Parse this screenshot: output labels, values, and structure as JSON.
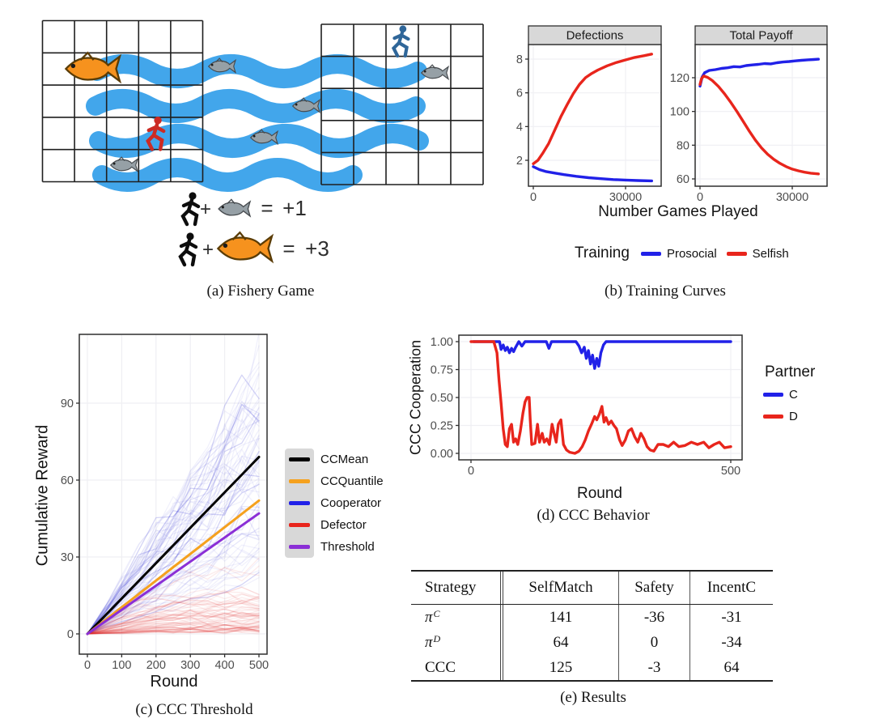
{
  "figure": {
    "captions": {
      "a": "(a) Fishery Game",
      "b": "(b) Training Curves",
      "c": "(c) CCC Threshold",
      "d": "(d) CCC Behavior",
      "e": "(e) Results"
    }
  },
  "fishery": {
    "plus": "+",
    "equals": "=",
    "reward_small": "+1",
    "reward_big": "+3",
    "colors": {
      "water": "#38A2EA",
      "gray_fish": "#96A0A6",
      "orange_fish": "#F6921E",
      "red_agent": "#CC2B24",
      "blue_agent": "#2F6699",
      "black_agent": "#0d0d0d"
    }
  },
  "chart_data": [
    {
      "id": "defections",
      "type": "line",
      "title": "Defections",
      "xlabel": "Number Games Played",
      "xlim": [
        0,
        41000
      ],
      "ylim": [
        0.5,
        8.8
      ],
      "xticks": [
        {
          "v": 0,
          "label": "0"
        },
        {
          "v": 30000,
          "label": "30000"
        }
      ],
      "yticks": [
        {
          "v": 2,
          "label": "2"
        },
        {
          "v": 4,
          "label": "4"
        },
        {
          "v": 6,
          "label": "6"
        },
        {
          "v": 8,
          "label": "8"
        }
      ],
      "series": [
        {
          "name": "Selfish",
          "color": "#E8251C",
          "points": [
            [
              0,
              1.8
            ],
            [
              1500,
              2.0
            ],
            [
              3000,
              2.4
            ],
            [
              5000,
              3.0
            ],
            [
              7000,
              3.8
            ],
            [
              9000,
              4.6
            ],
            [
              11000,
              5.3
            ],
            [
              13000,
              5.95
            ],
            [
              15000,
              6.5
            ],
            [
              17000,
              6.9
            ],
            [
              19000,
              7.15
            ],
            [
              21000,
              7.35
            ],
            [
              24000,
              7.6
            ],
            [
              27000,
              7.8
            ],
            [
              30000,
              7.95
            ],
            [
              33000,
              8.1
            ],
            [
              36000,
              8.2
            ],
            [
              38500,
              8.3
            ]
          ]
        },
        {
          "name": "Prosocial",
          "color": "#2121E8",
          "points": [
            [
              0,
              1.62
            ],
            [
              2000,
              1.45
            ],
            [
              4000,
              1.34
            ],
            [
              7000,
              1.24
            ],
            [
              10000,
              1.15
            ],
            [
              14000,
              1.05
            ],
            [
              18000,
              0.97
            ],
            [
              22000,
              0.91
            ],
            [
              26000,
              0.86
            ],
            [
              30000,
              0.83
            ],
            [
              34000,
              0.8
            ],
            [
              38500,
              0.78
            ]
          ]
        }
      ]
    },
    {
      "id": "total-payoff",
      "type": "line",
      "title": "Total Payoff",
      "xlabel": "Number Games Played",
      "xlim": [
        0,
        41000
      ],
      "ylim": [
        56,
        140
      ],
      "xticks": [
        {
          "v": 0,
          "label": "0"
        },
        {
          "v": 30000,
          "label": "30000"
        }
      ],
      "yticks": [
        {
          "v": 60,
          "label": "60"
        },
        {
          "v": 80,
          "label": "80"
        },
        {
          "v": 100,
          "label": "100"
        },
        {
          "v": 120,
          "label": "120"
        }
      ],
      "series": [
        {
          "name": "Prosocial",
          "color": "#2121E8",
          "points": [
            [
              0,
              115
            ],
            [
              700,
              120.5
            ],
            [
              1500,
              123
            ],
            [
              3000,
              124.3
            ],
            [
              5000,
              124.8
            ],
            [
              7000,
              125.5
            ],
            [
              9000,
              125.9
            ],
            [
              11000,
              126.6
            ],
            [
              13000,
              126.4
            ],
            [
              15000,
              127.2
            ],
            [
              17000,
              127.6
            ],
            [
              19000,
              127.9
            ],
            [
              21000,
              128.4
            ],
            [
              23000,
              128.2
            ],
            [
              25000,
              128.9
            ],
            [
              27000,
              129.3
            ],
            [
              29000,
              129.6
            ],
            [
              31000,
              130.0
            ],
            [
              33000,
              130.3
            ],
            [
              35000,
              130.6
            ],
            [
              37000,
              130.8
            ],
            [
              38500,
              131
            ]
          ]
        },
        {
          "name": "Selfish",
          "color": "#E8251C",
          "points": [
            [
              0,
              116
            ],
            [
              500,
              119.5
            ],
            [
              1200,
              121
            ],
            [
              2500,
              120.2
            ],
            [
              4000,
              118.3
            ],
            [
              6000,
              114.8
            ],
            [
              8000,
              110.4
            ],
            [
              10000,
              105.4
            ],
            [
              12000,
              100
            ],
            [
              14000,
              94.2
            ],
            [
              16000,
              88.4
            ],
            [
              18000,
              83
            ],
            [
              20000,
              78.4
            ],
            [
              22000,
              74.6
            ],
            [
              24000,
              71.6
            ],
            [
              26000,
              69.2
            ],
            [
              28000,
              67.3
            ],
            [
              30000,
              65.8
            ],
            [
              32000,
              64.8
            ],
            [
              34000,
              64.0
            ],
            [
              36000,
              63.4
            ],
            [
              38500,
              63
            ]
          ]
        }
      ]
    },
    {
      "id": "ccc-threshold",
      "type": "line",
      "title": "CCC Threshold",
      "xlabel": "Round",
      "ylabel": "Cumulative Reward",
      "xlim": [
        0,
        523
      ],
      "ylim": [
        -8,
        117
      ],
      "xticks": [
        {
          "v": 0,
          "label": "0"
        },
        {
          "v": 100,
          "label": "100"
        },
        {
          "v": 200,
          "label": "200"
        },
        {
          "v": 300,
          "label": "300"
        },
        {
          "v": 400,
          "label": "400"
        },
        {
          "v": 500,
          "label": "500"
        }
      ],
      "yticks": [
        {
          "v": 0,
          "label": "0"
        },
        {
          "v": 30,
          "label": "30"
        },
        {
          "v": 60,
          "label": "60"
        },
        {
          "v": 90,
          "label": "90"
        }
      ],
      "lines": [
        {
          "name": "CCMean",
          "color": "#000000",
          "points": [
            [
              0,
              0
            ],
            [
              500,
              69
            ]
          ]
        },
        {
          "name": "CCQuantile",
          "color": "#F5A11E",
          "points": [
            [
              0,
              0
            ],
            [
              500,
              52
            ]
          ]
        },
        {
          "name": "Threshold",
          "color": "#8B2FD6",
          "points": [
            [
              0,
              0
            ],
            [
              500,
              47
            ]
          ]
        }
      ],
      "ensemble": {
        "cooperator_color": "#3b3bd6",
        "defector_color": "#e23030",
        "cooperator_count": 70,
        "defector_count": 62,
        "cooperator_end_range": [
          22,
          105
        ],
        "defector_end_range": [
          1,
          29
        ]
      }
    },
    {
      "id": "ccc-behavior",
      "type": "line",
      "title": "CCC Behavior",
      "xlabel": "Round",
      "ylabel": "CCC Cooperation",
      "xlim": [
        -23,
        522
      ],
      "ylim": [
        -0.06,
        1.06
      ],
      "xticks": [
        {
          "v": 0,
          "label": "0"
        },
        {
          "v": 500,
          "label": "500"
        }
      ],
      "yticks": [
        {
          "v": 1,
          "label": "1.00"
        },
        {
          "v": 0.75,
          "label": "0.75"
        },
        {
          "v": 0.5,
          "label": "0.50"
        },
        {
          "v": 0.25,
          "label": "0.25"
        },
        {
          "v": 0,
          "label": "0.00"
        }
      ],
      "series": [
        {
          "name": "C",
          "color": "#2121E8",
          "points": [
            [
              5,
              1
            ],
            [
              55,
              1
            ],
            [
              58,
              0.93
            ],
            [
              62,
              0.97
            ],
            [
              66,
              0.92
            ],
            [
              70,
              0.95
            ],
            [
              74,
              0.9
            ],
            [
              78,
              0.94
            ],
            [
              82,
              0.91
            ],
            [
              86,
              0.95
            ],
            [
              92,
              1
            ],
            [
              98,
              0.96
            ],
            [
              104,
              1
            ],
            [
              145,
              1
            ],
            [
              150,
              0.94
            ],
            [
              155,
              1
            ],
            [
              202,
              1
            ],
            [
              208,
              0.96
            ],
            [
              213,
              0.9
            ],
            [
              218,
              0.95
            ],
            [
              222,
              0.85
            ],
            [
              226,
              0.92
            ],
            [
              230,
              0.8
            ],
            [
              234,
              0.88
            ],
            [
              238,
              0.76
            ],
            [
              242,
              0.85
            ],
            [
              246,
              0.78
            ],
            [
              250,
              0.9
            ],
            [
              255,
              0.97
            ],
            [
              260,
              1
            ],
            [
              500,
              1
            ]
          ]
        },
        {
          "name": "D",
          "color": "#E8251C",
          "points": [
            [
              0,
              1
            ],
            [
              44,
              1
            ],
            [
              50,
              0.9
            ],
            [
              54,
              0.65
            ],
            [
              58,
              0.45
            ],
            [
              62,
              0.22
            ],
            [
              66,
              0.08
            ],
            [
              70,
              0.06
            ],
            [
              74,
              0.22
            ],
            [
              78,
              0.26
            ],
            [
              82,
              0.1
            ],
            [
              86,
              0.13
            ],
            [
              90,
              0.08
            ],
            [
              95,
              0.2
            ],
            [
              100,
              0.36
            ],
            [
              104,
              0.46
            ],
            [
              108,
              0.5
            ],
            [
              112,
              0.5
            ],
            [
              114,
              0.3
            ],
            [
              117,
              0.08
            ],
            [
              123,
              0.09
            ],
            [
              128,
              0.26
            ],
            [
              132,
              0.1
            ],
            [
              137,
              0.18
            ],
            [
              141,
              0.1
            ],
            [
              146,
              0.13
            ],
            [
              151,
              0.08
            ],
            [
              156,
              0.26
            ],
            [
              160,
              0.18
            ],
            [
              164,
              0.1
            ],
            [
              168,
              0.26
            ],
            [
              173,
              0.3
            ],
            [
              178,
              0.08
            ],
            [
              184,
              0.03
            ],
            [
              190,
              0.01
            ],
            [
              200,
              0.0
            ],
            [
              208,
              0.02
            ],
            [
              214,
              0.06
            ],
            [
              220,
              0.12
            ],
            [
              226,
              0.2
            ],
            [
              232,
              0.26
            ],
            [
              238,
              0.33
            ],
            [
              242,
              0.3
            ],
            [
              247,
              0.35
            ],
            [
              252,
              0.42
            ],
            [
              256,
              0.28
            ],
            [
              260,
              0.32
            ],
            [
              265,
              0.26
            ],
            [
              270,
              0.29
            ],
            [
              275,
              0.25
            ],
            [
              280,
              0.22
            ],
            [
              286,
              0.12
            ],
            [
              291,
              0.07
            ],
            [
              297,
              0.12
            ],
            [
              303,
              0.2
            ],
            [
              309,
              0.22
            ],
            [
              315,
              0.15
            ],
            [
              321,
              0.1
            ],
            [
              327,
              0.18
            ],
            [
              333,
              0.13
            ],
            [
              339,
              0.06
            ],
            [
              345,
              0.03
            ],
            [
              352,
              0.02
            ],
            [
              360,
              0.08
            ],
            [
              370,
              0.08
            ],
            [
              380,
              0.06
            ],
            [
              390,
              0.1
            ],
            [
              400,
              0.06
            ],
            [
              412,
              0.07
            ],
            [
              424,
              0.1
            ],
            [
              436,
              0.08
            ],
            [
              448,
              0.1
            ],
            [
              458,
              0.05
            ],
            [
              468,
              0.08
            ],
            [
              478,
              0.1
            ],
            [
              488,
              0.05
            ],
            [
              500,
              0.06
            ]
          ]
        }
      ]
    }
  ],
  "legends": {
    "training": {
      "title": "Training",
      "entries": [
        {
          "label": "Prosocial",
          "color": "#2121E8"
        },
        {
          "label": "Selfish",
          "color": "#E8251C"
        }
      ]
    },
    "ccc": {
      "entries": [
        {
          "label": "CCMean",
          "color": "#000000"
        },
        {
          "label": "CCQuantile",
          "color": "#F5A11E"
        },
        {
          "label": "Cooperator",
          "color": "#2121E8"
        },
        {
          "label": "Defector",
          "color": "#E8251C"
        },
        {
          "label": "Threshold",
          "color": "#8B2FD6"
        }
      ]
    },
    "partner": {
      "title": "Partner",
      "entries": [
        {
          "label": "C",
          "color": "#2121E8"
        },
        {
          "label": "D",
          "color": "#E8251C"
        }
      ]
    }
  },
  "results_table": {
    "columns": [
      "Strategy",
      "SelfMatch",
      "Safety",
      "IncentC"
    ],
    "rows": [
      {
        "strategy": "π",
        "sup": "C",
        "values": [
          "141",
          "-36",
          "-31"
        ]
      },
      {
        "strategy": "π",
        "sup": "D",
        "values": [
          "64",
          "0",
          "-34"
        ]
      },
      {
        "strategy": "CCC",
        "sup": "",
        "values": [
          "125",
          "-3",
          "64"
        ]
      }
    ]
  }
}
